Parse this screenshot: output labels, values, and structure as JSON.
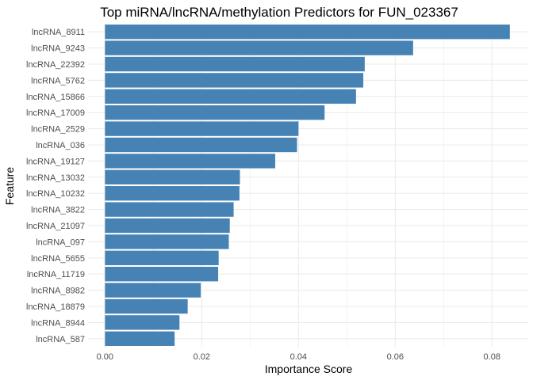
{
  "chart_data": {
    "type": "bar",
    "orientation": "horizontal",
    "title": "Top miRNA/lncRNA/methylation Predictors for FUN_023367",
    "xlabel": "Importance Score",
    "ylabel": "Feature",
    "xlim": [
      -0.0035,
      0.0875
    ],
    "x_ticks": [
      "0.00",
      "0.02",
      "0.04",
      "0.06",
      "0.08"
    ],
    "x_tick_values": [
      0.0,
      0.02,
      0.04,
      0.06,
      0.08
    ],
    "grid": true,
    "bar_color": "#4682b4",
    "grid_color": "#ebebeb",
    "categories": [
      "lncRNA_8911",
      "lncRNA_9243",
      "lncRNA_22392",
      "lncRNA_5762",
      "lncRNA_15866",
      "lncRNA_17009",
      "lncRNA_2529",
      "lncRNA_036",
      "lncRNA_19127",
      "lncRNA_13032",
      "lncRNA_10232",
      "lncRNA_3822",
      "lncRNA_21097",
      "lncRNA_097",
      "lncRNA_5655",
      "lncRNA_11719",
      "lncRNA_8982",
      "lncRNA_18879",
      "lncRNA_8944",
      "lncRNA_587"
    ],
    "values": [
      0.0837,
      0.0637,
      0.0537,
      0.0534,
      0.0519,
      0.0454,
      0.04,
      0.0397,
      0.0352,
      0.0279,
      0.0278,
      0.0266,
      0.0258,
      0.0256,
      0.0235,
      0.0234,
      0.0198,
      0.0171,
      0.0154,
      0.0144
    ]
  }
}
